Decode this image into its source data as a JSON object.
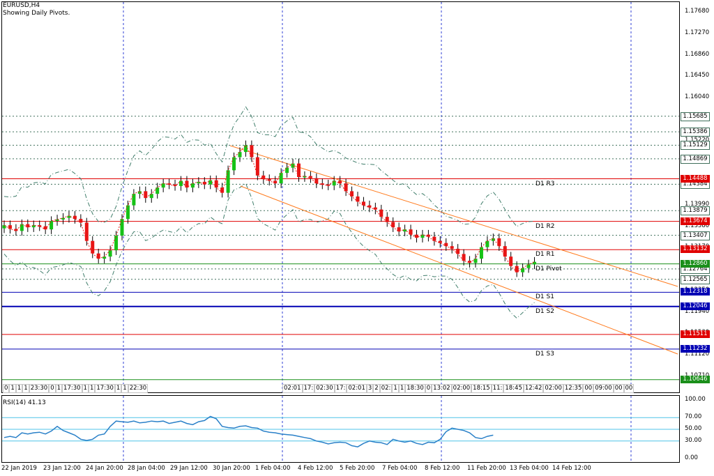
{
  "header": {
    "symbol": "EURUSD,H4",
    "indicator_note": "Showing Daily Pivots."
  },
  "colors": {
    "background": "#ffffff",
    "bull": "#16c216",
    "bear": "#e81515",
    "resistance": "#e00000",
    "support": "#0000b4",
    "pivot": "#1a8f1a",
    "grid": "#2f3fd6",
    "channel": "#ff7a1c",
    "bands": "#3f7d6a",
    "rsi": "#2a80c8",
    "rsi_level": "#4fc3e8"
  },
  "price_axis": {
    "ticks": [
      "1.17680",
      "1.17270",
      "1.16860",
      "1.16450",
      "1.16040",
      "1.15630",
      "1.15220",
      "1.14810",
      "1.14400",
      "1.13990",
      "1.13580",
      "1.13170",
      "1.12760",
      "1.12350",
      "1.11940",
      "1.11530",
      "1.11120",
      "1.10710"
    ]
  },
  "pivots": [
    {
      "id": "r3",
      "label": "D1 R3",
      "badge": "1.14488",
      "color": "#e00000"
    },
    {
      "id": "r2",
      "label": "D1 R2",
      "badge": "1.13674",
      "color": "#e00000"
    },
    {
      "id": "r1",
      "label": "D1 R1",
      "badge": "1.13132",
      "color": "#e00000"
    },
    {
      "id": "pivot",
      "label": "D1 Pivot",
      "badge": "1.12860",
      "color": "#1a8f1a"
    },
    {
      "id": "s1",
      "label": "D1 S1",
      "badge": "1.12318",
      "color": "#0000b4"
    },
    {
      "id": "s2",
      "label": "D1 S2",
      "badge": "1.12046",
      "color": "#0000b4"
    },
    {
      "id": "s3",
      "label": "D1 S3",
      "badge": "1.11232",
      "color": "#0000b4"
    },
    {
      "id": "extra_red",
      "label": "",
      "badge": "1.11511",
      "color": "#e00000"
    },
    {
      "id": "extra_green",
      "label": "",
      "badge": "1.10646",
      "color": "#1a8f1a"
    }
  ],
  "level_badges": [
    {
      "value": "1.15685"
    },
    {
      "value": "1.15386"
    },
    {
      "value": "1.15129"
    },
    {
      "value": "1.14869"
    },
    {
      "value": "1.14384"
    },
    {
      "value": "1.13879"
    },
    {
      "value": "1.13407"
    },
    {
      "value": "1.12764"
    },
    {
      "value": "1.12565"
    }
  ],
  "time_strip": {
    "cells_left": [
      "0",
      "1",
      "1",
      "1",
      "23:30",
      "0",
      "1",
      "17:30",
      "1",
      "1",
      "17:30",
      "1",
      "1",
      "22:30"
    ],
    "cells_right": [
      "02:01",
      "17:",
      "02:30",
      "17:",
      "02:01",
      "3",
      "2",
      "02:",
      "1",
      "1",
      "18:30",
      "0",
      "13:02",
      "02:00",
      "18:15",
      "11:",
      "18:45",
      "12:42",
      "02:00",
      "12:35",
      "00",
      "09:00",
      "00",
      "00"
    ]
  },
  "rsi": {
    "label": "RSI(14) 41.13",
    "ticks": [
      "100.00",
      "70.00",
      "50.00",
      "30.00",
      "0.00"
    ],
    "values": [
      36,
      38,
      36,
      44,
      42,
      44,
      45,
      42,
      47,
      55,
      48,
      44,
      40,
      33,
      31,
      33,
      40,
      42,
      55,
      64,
      63,
      62,
      64,
      61,
      62,
      64,
      63,
      64,
      60,
      62,
      64,
      60,
      58,
      63,
      65,
      72,
      68,
      55,
      53,
      52,
      55,
      56,
      53,
      52,
      47,
      45,
      44,
      42,
      41,
      40,
      38,
      36,
      34,
      30,
      28,
      25,
      27,
      28,
      27,
      22,
      20,
      26,
      30,
      28,
      27,
      24,
      33,
      30,
      28,
      30,
      26,
      24,
      28,
      27,
      33,
      46,
      52,
      50,
      48,
      44,
      36,
      34,
      38,
      40
    ]
  },
  "date_axis": {
    "labels": [
      "22 Jan 2019",
      "23 Jan 12:00",
      "24 Jan 20:00",
      "28 Jan 04:00",
      "29 Jan 12:00",
      "30 Jan 20:00",
      "1 Feb 04:00",
      "4 Feb 12:00",
      "5 Feb 20:00",
      "7 Feb 04:00",
      "8 Feb 12:00",
      "11 Feb 20:00",
      "13 Feb 04:00",
      "14 Feb 12:00"
    ]
  },
  "price_series": [
    1.136,
    1.1353,
    1.1349,
    1.1362,
    1.1356,
    1.136,
    1.1358,
    1.1352,
    1.1368,
    1.1371,
    1.1374,
    1.1378,
    1.1372,
    1.1365,
    1.133,
    1.1306,
    1.1296,
    1.13,
    1.1312,
    1.134,
    1.1372,
    1.1398,
    1.142,
    1.1425,
    1.1412,
    1.142,
    1.1432,
    1.144,
    1.1438,
    1.1435,
    1.1445,
    1.1432,
    1.144,
    1.1443,
    1.1438,
    1.1446,
    1.1432,
    1.1422,
    1.1465,
    1.149,
    1.15,
    1.1513,
    1.149,
    1.1455,
    1.1448,
    1.1445,
    1.144,
    1.146,
    1.147,
    1.1478,
    1.1452,
    1.1454,
    1.145,
    1.144,
    1.1438,
    1.1436,
    1.1445,
    1.144,
    1.1425,
    1.1415,
    1.1405,
    1.1398,
    1.1394,
    1.139,
    1.1376,
    1.1366,
    1.1356,
    1.1348,
    1.1352,
    1.1342,
    1.1336,
    1.1342,
    1.1338,
    1.133,
    1.1326,
    1.132,
    1.1315,
    1.1305,
    1.1292,
    1.1288,
    1.1296,
    1.1318,
    1.133,
    1.1335,
    1.132,
    1.13,
    1.1282,
    1.127,
    1.1278,
    1.1285,
    1.129
  ]
}
